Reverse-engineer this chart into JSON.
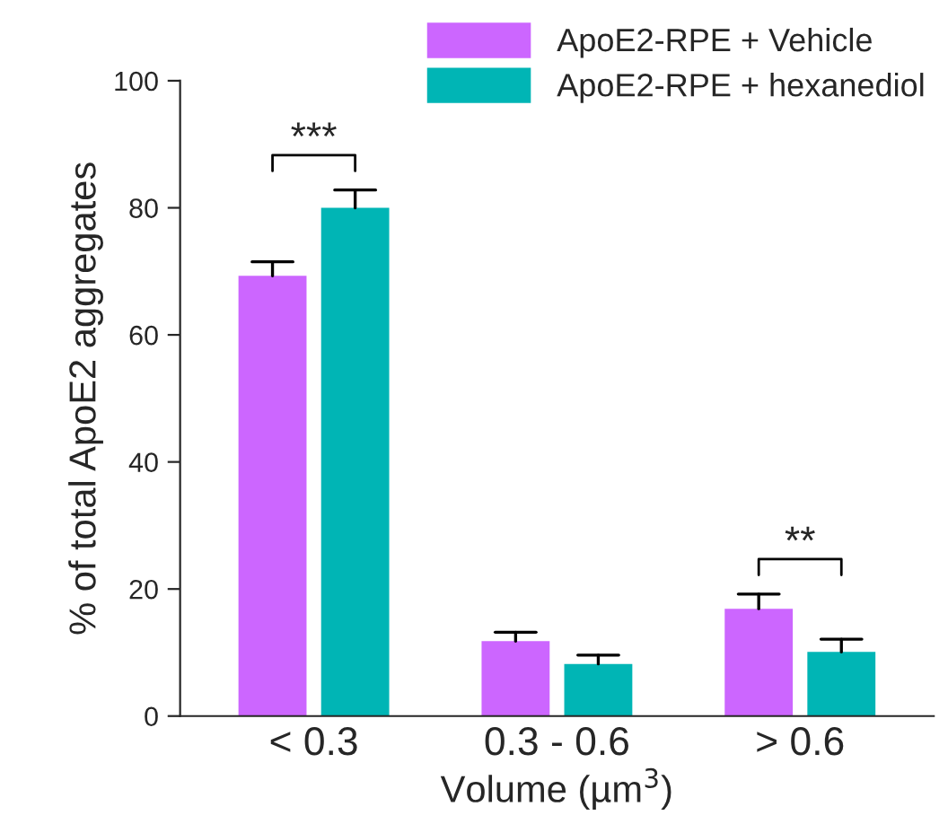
{
  "chart_data": {
    "type": "bar",
    "ylabel": "% of total ApoE2 aggregates",
    "xlabel": "Volume (µm$^{3}$)",
    "categories": [
      "< 0.3",
      "0.3 - 0.6",
      "> 0.6"
    ],
    "series": [
      {
        "name": "ApoE2-RPE + Vehicle",
        "color": "#cc66ff",
        "values": [
          69.3,
          11.8,
          16.9
        ],
        "errors": [
          [
            69.3,
            71.5
          ],
          [
            11.8,
            13.2
          ],
          [
            16.9,
            19.2
          ]
        ]
      },
      {
        "name": "ApoE2-RPE + hexanediol",
        "color": "#00b5b5",
        "values": [
          80.0,
          8.2,
          10.1
        ],
        "errors": [
          [
            80.0,
            82.8
          ],
          [
            8.2,
            9.6
          ],
          [
            10.1,
            12.1
          ]
        ]
      }
    ],
    "ylim": [
      0,
      100
    ],
    "yticks": [
      0,
      20,
      40,
      60,
      80,
      100
    ],
    "grid": false,
    "legend": "top right",
    "annotations": [
      "***",
      "**"
    ]
  }
}
